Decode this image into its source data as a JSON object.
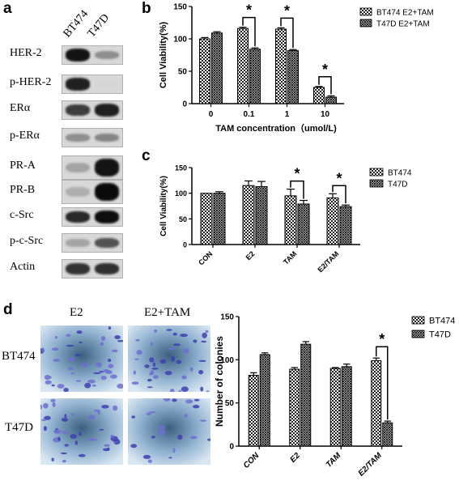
{
  "panels": {
    "a": "a",
    "b": "b",
    "c": "c",
    "d": "d"
  },
  "blot": {
    "cell_lines": [
      "BT474",
      "T47D"
    ],
    "rows": [
      {
        "label": "HER-2",
        "bt474": 0.95,
        "t47d": 0.35
      },
      {
        "label": "p-HER-2",
        "bt474": 0.9,
        "t47d": 0.02
      },
      {
        "label": "ERα",
        "bt474": 0.75,
        "t47d": 0.9
      },
      {
        "label": "p-ERα",
        "bt474": 0.35,
        "t47d": 0.4
      },
      {
        "label": "PR-A",
        "bt474": 0.25,
        "t47d": 0.95
      },
      {
        "label": "PR-B",
        "bt474": 0.2,
        "t47d": 1.0
      },
      {
        "label": "c-Src",
        "bt474": 0.85,
        "t47d": 0.98
      },
      {
        "label": "p-c-Src",
        "bt474": 0.25,
        "t47d": 0.65
      },
      {
        "label": "Actin",
        "bt474": 0.8,
        "t47d": 0.82
      }
    ]
  },
  "micrographs": {
    "columns": [
      "E2",
      "E2+TAM"
    ],
    "rows": [
      "BT474",
      "T47D"
    ]
  },
  "chart_data": [
    {
      "id": "b",
      "type": "bar",
      "ylabel": "Cell Viability(%)",
      "xlabel": "TAM concentration（umol/L)",
      "categories": [
        "0",
        "0.1",
        "1",
        "10"
      ],
      "ylim": [
        0,
        150
      ],
      "yticks": [
        0,
        50,
        100,
        150
      ],
      "series": [
        {
          "name": "BT474 E2+TAM",
          "pattern": "checker",
          "values": [
            100,
            116,
            115,
            25
          ],
          "errors": [
            2,
            2,
            2,
            1.5
          ]
        },
        {
          "name": "T47D E2+TAM",
          "pattern": "diamond",
          "values": [
            109,
            84,
            82,
            10
          ],
          "errors": [
            2,
            2,
            1.5,
            2
          ]
        }
      ],
      "significance": [
        {
          "category": "0.1",
          "label": "*"
        },
        {
          "category": "1",
          "label": "*"
        },
        {
          "category": "10",
          "label": "*"
        }
      ],
      "legend": "top-right"
    },
    {
      "id": "c",
      "type": "bar",
      "ylabel": "Cell Viability(%)",
      "xlabel": "",
      "categories": [
        "CON",
        "E2",
        "TAM",
        "E2/TAM"
      ],
      "ylim": [
        0,
        150
      ],
      "yticks": [
        0,
        50,
        100,
        150
      ],
      "series": [
        {
          "name": "BT474",
          "pattern": "checker",
          "values": [
            100,
            115,
            95,
            91
          ],
          "errors": [
            0,
            9,
            13,
            8
          ]
        },
        {
          "name": "T47D",
          "pattern": "diamond",
          "values": [
            100,
            113,
            79,
            74
          ],
          "errors": [
            3,
            10,
            7,
            3
          ]
        }
      ],
      "significance": [
        {
          "category": "TAM",
          "label": "*"
        },
        {
          "category": "E2/TAM",
          "label": "*"
        }
      ],
      "legend": "top-right"
    },
    {
      "id": "d",
      "type": "bar",
      "ylabel": "Number of colonies",
      "xlabel": "",
      "categories": [
        "CON",
        "E2",
        "TAM",
        "E2/TAM"
      ],
      "ylim": [
        0,
        150
      ],
      "yticks": [
        0,
        50,
        100,
        150
      ],
      "series": [
        {
          "name": "BT474",
          "pattern": "checker",
          "values": [
            82,
            89,
            90,
            99
          ],
          "errors": [
            3,
            2,
            1,
            3
          ]
        },
        {
          "name": "T47D",
          "pattern": "diamond",
          "values": [
            106,
            118,
            92,
            27
          ],
          "errors": [
            2,
            3,
            3,
            2
          ]
        }
      ],
      "significance": [
        {
          "category": "E2/TAM",
          "label": "*"
        }
      ],
      "legend": "top-right"
    }
  ]
}
